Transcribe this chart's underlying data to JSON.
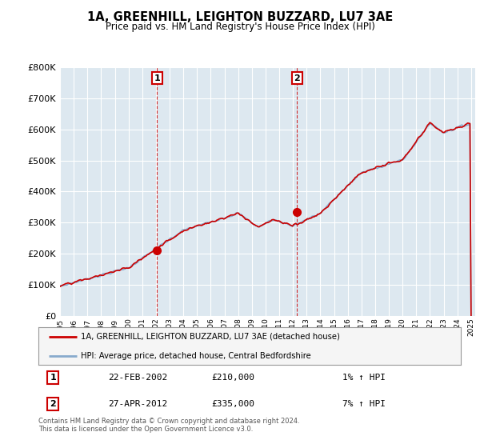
{
  "title": "1A, GREENHILL, LEIGHTON BUZZARD, LU7 3AE",
  "subtitle": "Price paid vs. HM Land Registry's House Price Index (HPI)",
  "legend_label_red": "1A, GREENHILL, LEIGHTON BUZZARD, LU7 3AE (detached house)",
  "legend_label_blue": "HPI: Average price, detached house, Central Bedfordshire",
  "annotation1_date": "22-FEB-2002",
  "annotation1_price": "£210,000",
  "annotation1_hpi": "1% ↑ HPI",
  "annotation2_date": "27-APR-2012",
  "annotation2_price": "£335,000",
  "annotation2_hpi": "7% ↑ HPI",
  "footnote": "Contains HM Land Registry data © Crown copyright and database right 2024.\nThis data is licensed under the Open Government Licence v3.0.",
  "red_color": "#cc0000",
  "blue_color": "#88aacc",
  "background_plot": "#dde8f0",
  "grid_color": "#ffffff",
  "ylim": [
    0,
    800000
  ],
  "yticks": [
    0,
    100000,
    200000,
    300000,
    400000,
    500000,
    600000,
    700000,
    800000
  ],
  "sale1_year": 2002.08,
  "sale1_price": 210000,
  "sale2_year": 2012.29,
  "sale2_price": 335000
}
